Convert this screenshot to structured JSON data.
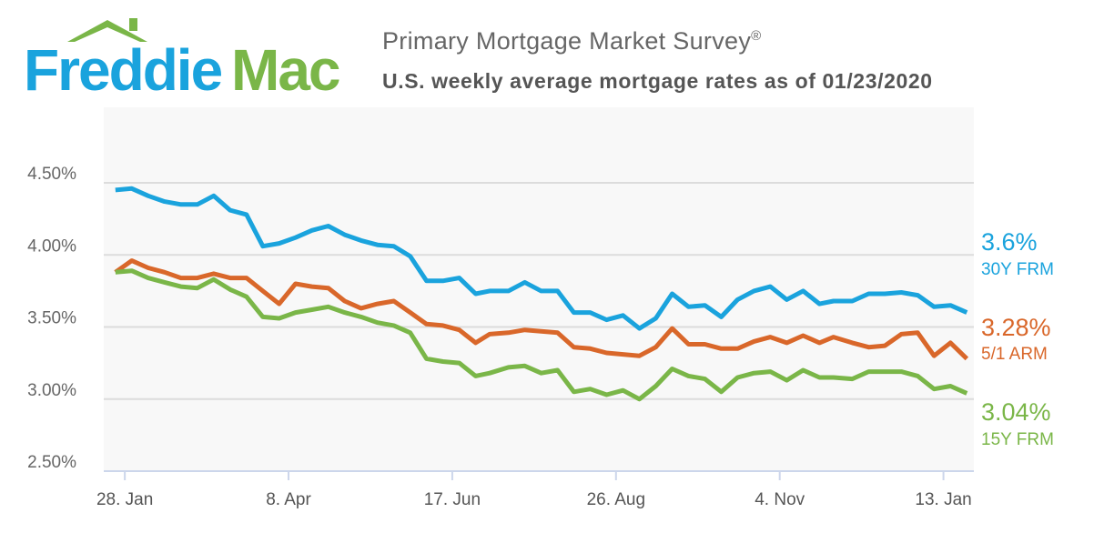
{
  "logo": {
    "text_part1": "Freddie",
    "text_part2": "Mac",
    "icon": "house-roof-icon",
    "colors": {
      "blue": "#1aa3dd",
      "green": "#7ab648"
    }
  },
  "header": {
    "title": "Primary Mortgage Market Survey",
    "title_mark": "®",
    "subtitle": "U.S. weekly average mortgage rates as of 01/23/2020"
  },
  "chart_data": {
    "type": "line",
    "ylim": [
      2.5,
      4.75
    ],
    "yticks": [
      2.5,
      3.0,
      3.5,
      4.0,
      4.5
    ],
    "ytick_labels": [
      "2.50%",
      "3.00%",
      "3.50%",
      "4.00%",
      "4.50%"
    ],
    "xlim": [
      "2019-01-19",
      "2020-01-26"
    ],
    "xticks": [
      "2019-01-28",
      "2019-04-08",
      "2019-06-17",
      "2019-08-26",
      "2019-11-04",
      "2020-01-13"
    ],
    "xtick_labels": [
      "28. Jan",
      "8. Apr",
      "17. Jun",
      "26. Aug",
      "4. Nov",
      "13. Jan"
    ],
    "grid": true,
    "legend": "right-end labels",
    "x": [
      "2019-01-24",
      "2019-01-31",
      "2019-02-07",
      "2019-02-14",
      "2019-02-21",
      "2019-02-28",
      "2019-03-07",
      "2019-03-14",
      "2019-03-21",
      "2019-03-28",
      "2019-04-04",
      "2019-04-11",
      "2019-04-18",
      "2019-04-25",
      "2019-05-02",
      "2019-05-09",
      "2019-05-16",
      "2019-05-23",
      "2019-05-30",
      "2019-06-06",
      "2019-06-13",
      "2019-06-20",
      "2019-06-27",
      "2019-07-03",
      "2019-07-11",
      "2019-07-18",
      "2019-07-25",
      "2019-08-01",
      "2019-08-08",
      "2019-08-15",
      "2019-08-22",
      "2019-08-29",
      "2019-09-05",
      "2019-09-12",
      "2019-09-19",
      "2019-09-26",
      "2019-10-03",
      "2019-10-10",
      "2019-10-17",
      "2019-10-24",
      "2019-10-31",
      "2019-11-07",
      "2019-11-14",
      "2019-11-21",
      "2019-11-27",
      "2019-12-05",
      "2019-12-12",
      "2019-12-19",
      "2019-12-26",
      "2020-01-02",
      "2020-01-09",
      "2020-01-16",
      "2020-01-23"
    ],
    "series": [
      {
        "name": "30Y FRM",
        "latest_label": "3.6%",
        "color": "#1aa3dd",
        "values": [
          4.45,
          4.46,
          4.41,
          4.37,
          4.35,
          4.35,
          4.41,
          4.31,
          4.28,
          4.06,
          4.08,
          4.12,
          4.17,
          4.2,
          4.14,
          4.1,
          4.07,
          4.06,
          3.99,
          3.82,
          3.82,
          3.84,
          3.73,
          3.75,
          3.75,
          3.81,
          3.75,
          3.75,
          3.6,
          3.6,
          3.55,
          3.58,
          3.49,
          3.56,
          3.73,
          3.64,
          3.65,
          3.57,
          3.69,
          3.75,
          3.78,
          3.69,
          3.75,
          3.66,
          3.68,
          3.68,
          3.73,
          3.73,
          3.74,
          3.72,
          3.64,
          3.65,
          3.6
        ]
      },
      {
        "name": "5/1 ARM",
        "latest_label": "3.28%",
        "color": "#d9672a",
        "values": [
          3.88,
          3.96,
          3.91,
          3.88,
          3.84,
          3.84,
          3.87,
          3.84,
          3.84,
          3.75,
          3.66,
          3.8,
          3.78,
          3.77,
          3.68,
          3.63,
          3.66,
          3.68,
          3.6,
          3.52,
          3.51,
          3.48,
          3.39,
          3.45,
          3.46,
          3.48,
          3.47,
          3.46,
          3.36,
          3.35,
          3.32,
          3.31,
          3.3,
          3.36,
          3.49,
          3.38,
          3.38,
          3.35,
          3.35,
          3.4,
          3.43,
          3.39,
          3.44,
          3.39,
          3.43,
          3.39,
          3.36,
          3.37,
          3.45,
          3.46,
          3.3,
          3.39,
          3.28
        ]
      },
      {
        "name": "15Y FRM",
        "latest_label": "3.04%",
        "color": "#7ab648",
        "values": [
          3.88,
          3.89,
          3.84,
          3.81,
          3.78,
          3.77,
          3.83,
          3.76,
          3.71,
          3.57,
          3.56,
          3.6,
          3.62,
          3.64,
          3.6,
          3.57,
          3.53,
          3.51,
          3.46,
          3.28,
          3.26,
          3.25,
          3.16,
          3.18,
          3.22,
          3.23,
          3.18,
          3.2,
          3.05,
          3.07,
          3.03,
          3.06,
          3.0,
          3.09,
          3.21,
          3.16,
          3.14,
          3.05,
          3.15,
          3.18,
          3.19,
          3.13,
          3.2,
          3.15,
          3.15,
          3.14,
          3.19,
          3.19,
          3.19,
          3.16,
          3.07,
          3.09,
          3.04
        ]
      }
    ]
  }
}
